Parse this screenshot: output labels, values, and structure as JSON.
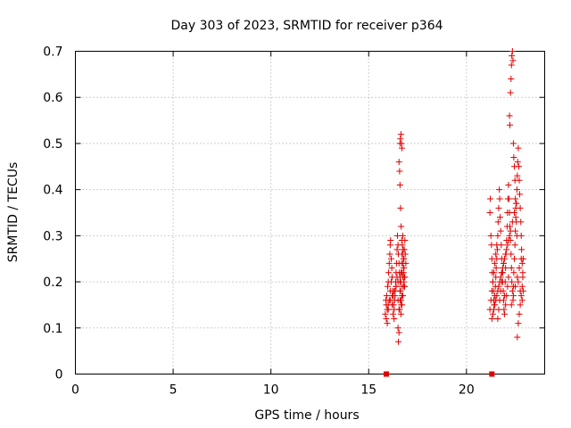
{
  "chart_data": {
    "type": "scatter",
    "title": "Day 303 of 2023, SRMTID for receiver p364",
    "xlabel": "GPS time / hours",
    "ylabel": "SRMTID / TECUs",
    "xlim": [
      0,
      24
    ],
    "ylim": [
      0,
      0.7
    ],
    "x_ticks": [
      0,
      5,
      10,
      15,
      20
    ],
    "x_tick_labels": [
      "0",
      "5",
      "10",
      "15",
      "20"
    ],
    "y_ticks": [
      0,
      0.1,
      0.2,
      0.3,
      0.4,
      0.5,
      0.6,
      0.7
    ],
    "y_tick_labels": [
      "0",
      "0.1",
      "0.2",
      "0.3",
      "0.4",
      "0.5",
      "0.6",
      "0.7"
    ],
    "grid": true,
    "marker_color": "#e00000",
    "series": [
      {
        "marker": "plus",
        "x": [
          15.85,
          15.88,
          15.9,
          15.92,
          15.95,
          15.97,
          16.0,
          16.02,
          16.05,
          16.08,
          16.1,
          16.12,
          16.15,
          16.18,
          16.2,
          16.22,
          16.25,
          16.27,
          16.3,
          16.32,
          16.35,
          16.38,
          16.4,
          16.42,
          16.45,
          16.47,
          16.5,
          16.52,
          16.55,
          16.57,
          16.6,
          16.62,
          16.65,
          16.67,
          16.7,
          16.72,
          16.75,
          16.78,
          16.8,
          16.82,
          16.85,
          16.87,
          16.9,
          15.9,
          15.95,
          16.0,
          16.05,
          16.1,
          16.15,
          16.2,
          16.25,
          16.3,
          16.35,
          16.4,
          16.45,
          16.5,
          16.55,
          16.6,
          16.65,
          16.7,
          16.75,
          16.8,
          16.85,
          16.6,
          16.62,
          16.65,
          16.68,
          16.7,
          16.55,
          16.58,
          16.6,
          16.63,
          16.66,
          16.69,
          16.72,
          16.75,
          16.78,
          16.8,
          16.5,
          16.52,
          16.55,
          16.58,
          16.6,
          16.62,
          16.64,
          16.66,
          16.68,
          16.7,
          16.72,
          16.74,
          16.76,
          16.78,
          16.8,
          16.82,
          16.84,
          16.0,
          16.1,
          16.2,
          16.3,
          16.4,
          16.5,
          16.6,
          16.7,
          16.8
        ],
        "y": [
          0.13,
          0.16,
          0.15,
          0.17,
          0.14,
          0.19,
          0.2,
          0.22,
          0.24,
          0.26,
          0.28,
          0.29,
          0.25,
          0.23,
          0.21,
          0.18,
          0.17,
          0.15,
          0.14,
          0.16,
          0.18,
          0.2,
          0.22,
          0.24,
          0.27,
          0.3,
          0.28,
          0.26,
          0.24,
          0.22,
          0.2,
          0.18,
          0.16,
          0.15,
          0.17,
          0.19,
          0.21,
          0.23,
          0.25,
          0.27,
          0.29,
          0.26,
          0.24,
          0.12,
          0.11,
          0.14,
          0.16,
          0.18,
          0.2,
          0.15,
          0.13,
          0.12,
          0.17,
          0.19,
          0.21,
          0.16,
          0.14,
          0.18,
          0.13,
          0.15,
          0.17,
          0.19,
          0.21,
          0.5,
          0.51,
          0.52,
          0.5,
          0.49,
          0.46,
          0.44,
          0.41,
          0.36,
          0.32,
          0.29,
          0.26,
          0.24,
          0.22,
          0.2,
          0.1,
          0.07,
          0.09,
          0.14,
          0.16,
          0.18,
          0.2,
          0.22,
          0.24,
          0.26,
          0.28,
          0.3,
          0.27,
          0.25,
          0.23,
          0.21,
          0.19,
          0.15,
          0.16,
          0.17,
          0.18,
          0.19,
          0.2,
          0.21,
          0.22,
          0.23
        ],
        "square_x": [
          15.9
        ],
        "square_y": [
          0.0
        ]
      },
      {
        "marker": "plus",
        "x": [
          21.2,
          21.22,
          21.25,
          21.28,
          21.3,
          21.32,
          21.35,
          21.38,
          21.4,
          21.42,
          21.45,
          21.48,
          21.5,
          21.52,
          21.55,
          21.58,
          21.6,
          21.62,
          21.65,
          21.68,
          21.7,
          21.72,
          21.75,
          21.78,
          21.8,
          21.82,
          21.85,
          21.88,
          21.9,
          21.92,
          21.95,
          21.98,
          22.0,
          22.02,
          22.05,
          22.08,
          22.1,
          22.12,
          22.15,
          22.18,
          22.2,
          22.22,
          22.25,
          22.28,
          22.3,
          22.32,
          22.35,
          22.38,
          22.4,
          22.42,
          22.45,
          22.48,
          22.5,
          22.52,
          22.55,
          22.58,
          22.6,
          22.62,
          22.65,
          22.68,
          22.7,
          22.72,
          22.75,
          22.78,
          22.8,
          22.82,
          22.85,
          22.88,
          22.9,
          21.3,
          21.4,
          21.5,
          21.6,
          21.7,
          21.8,
          21.9,
          22.0,
          22.1,
          22.2,
          22.3,
          22.4,
          22.5,
          22.6,
          22.7,
          22.8,
          21.35,
          21.45,
          21.55,
          21.65,
          21.75,
          21.85,
          21.95,
          22.05,
          22.15,
          22.25,
          22.35,
          22.45,
          22.55,
          22.65,
          22.75,
          22.85,
          22.2,
          22.22,
          22.25,
          22.28,
          22.3,
          22.32,
          22.35,
          22.38,
          22.4,
          22.42,
          22.45,
          22.48,
          22.5,
          22.52,
          22.55,
          22.58,
          21.2,
          21.25,
          21.3,
          21.35,
          21.4,
          21.45,
          21.5,
          21.55,
          21.6,
          21.65,
          21.7,
          21.75,
          21.8,
          21.85,
          21.9,
          21.95,
          22.0,
          22.05,
          22.1,
          22.15,
          22.6,
          22.65,
          22.7,
          22.75,
          22.8,
          22.85,
          22.88,
          22.9
        ],
        "y": [
          0.35,
          0.38,
          0.3,
          0.28,
          0.25,
          0.22,
          0.2,
          0.18,
          0.16,
          0.15,
          0.17,
          0.19,
          0.21,
          0.23,
          0.25,
          0.27,
          0.3,
          0.33,
          0.36,
          0.4,
          0.38,
          0.34,
          0.31,
          0.28,
          0.25,
          0.22,
          0.2,
          0.18,
          0.16,
          0.14,
          0.17,
          0.2,
          0.23,
          0.26,
          0.29,
          0.32,
          0.35,
          0.38,
          0.41,
          0.38,
          0.35,
          0.32,
          0.29,
          0.26,
          0.23,
          0.2,
          0.18,
          0.16,
          0.19,
          0.22,
          0.25,
          0.28,
          0.31,
          0.34,
          0.37,
          0.4,
          0.43,
          0.46,
          0.49,
          0.45,
          0.42,
          0.39,
          0.36,
          0.33,
          0.3,
          0.27,
          0.24,
          0.21,
          0.18,
          0.12,
          0.14,
          0.16,
          0.18,
          0.2,
          0.22,
          0.24,
          0.26,
          0.28,
          0.3,
          0.15,
          0.17,
          0.19,
          0.21,
          0.23,
          0.25,
          0.13,
          0.15,
          0.17,
          0.19,
          0.21,
          0.23,
          0.25,
          0.27,
          0.29,
          0.31,
          0.33,
          0.35,
          0.37,
          0.2,
          0.18,
          0.16,
          0.56,
          0.54,
          0.61,
          0.64,
          0.67,
          0.69,
          0.7,
          0.68,
          0.5,
          0.47,
          0.45,
          0.42,
          0.38,
          0.36,
          0.33,
          0.3,
          0.14,
          0.16,
          0.18,
          0.2,
          0.22,
          0.24,
          0.26,
          0.28,
          0.12,
          0.14,
          0.16,
          0.18,
          0.2,
          0.22,
          0.24,
          0.13,
          0.15,
          0.17,
          0.19,
          0.21,
          0.08,
          0.11,
          0.13,
          0.15,
          0.17,
          0.19,
          0.22,
          0.25
        ],
        "square_x": [
          21.3
        ],
        "square_y": [
          0.0
        ]
      }
    ]
  }
}
